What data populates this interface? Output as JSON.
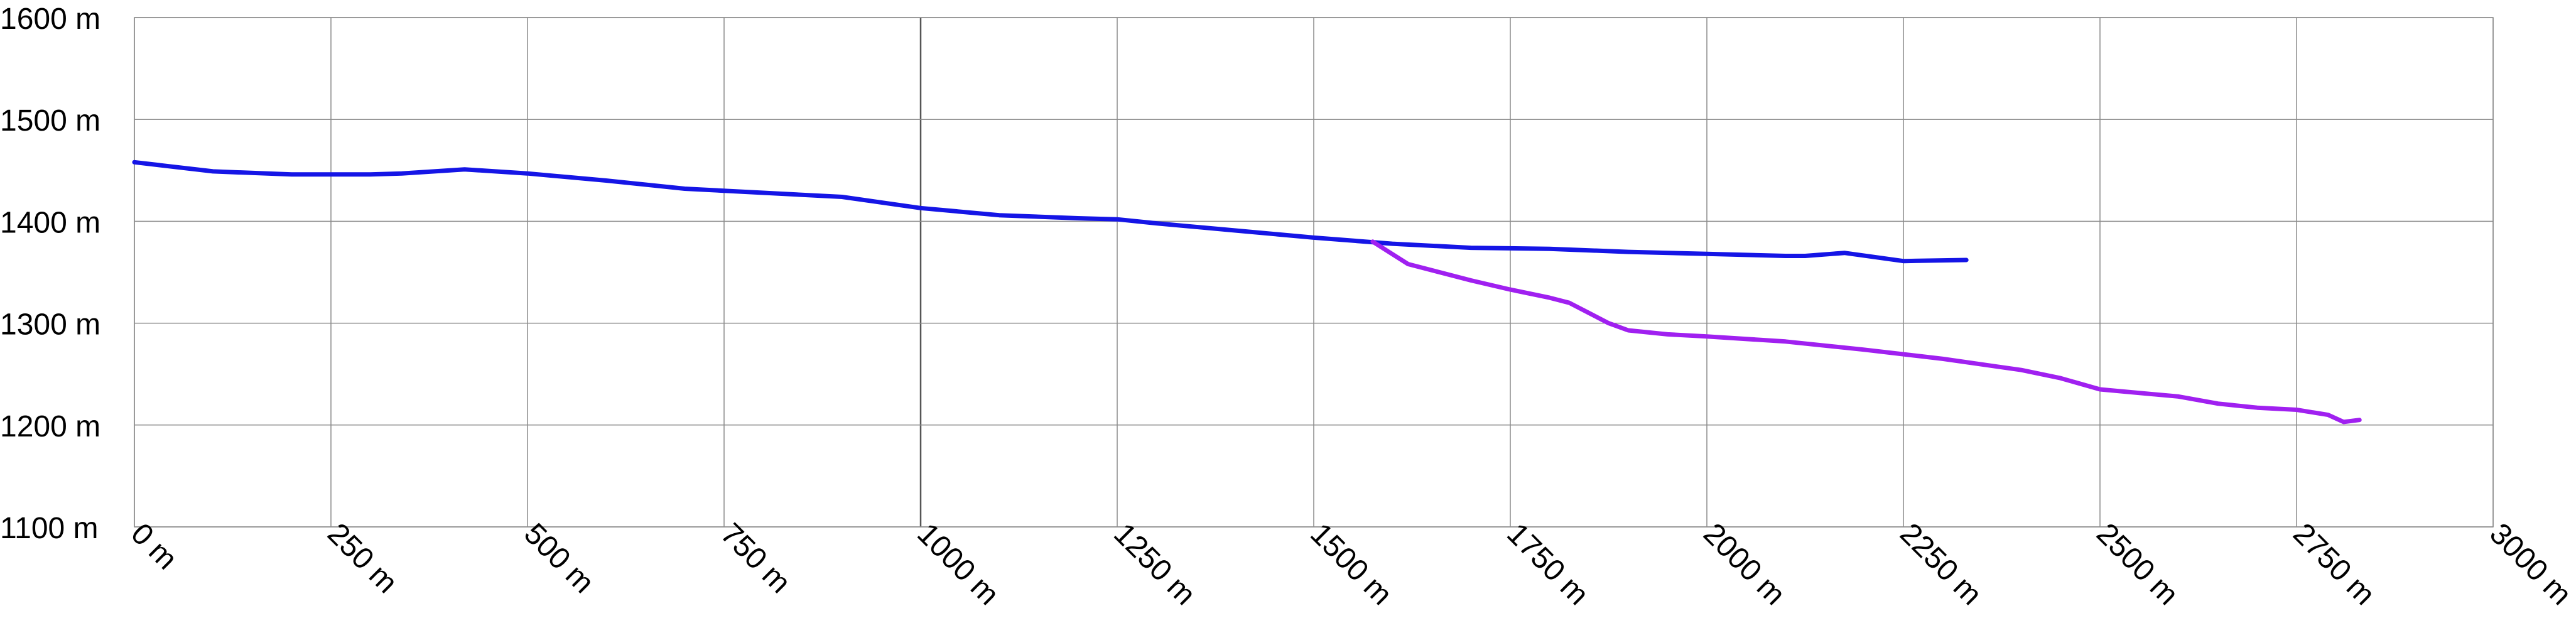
{
  "chart_data": {
    "type": "line",
    "title": "",
    "xlabel": "",
    "ylabel": "",
    "x_unit": "m",
    "y_unit": "m",
    "xlim": [
      0,
      3000
    ],
    "ylim": [
      1100,
      1600
    ],
    "x_ticks": [
      "0 m",
      "250 m",
      "500 m",
      "750 m",
      "1000 m",
      "1250 m",
      "1500 m",
      "1750 m",
      "2000 m",
      "2250 m",
      "2500 m",
      "2750 m",
      "3000 m"
    ],
    "y_ticks": [
      "1600 m",
      "1500 m",
      "1400 m",
      "1300 m",
      "1200 m",
      "1100 m"
    ],
    "x_tick_values": [
      0,
      250,
      500,
      750,
      1000,
      1250,
      1500,
      1750,
      2000,
      2250,
      2500,
      2750,
      3000
    ],
    "y_tick_values": [
      1600,
      1500,
      1400,
      1300,
      1200,
      1100
    ],
    "grid": true,
    "legend": "none",
    "series": [
      {
        "color": "#1515e6",
        "x": [
          0,
          100,
          200,
          300,
          340,
          420,
          500,
          600,
          700,
          800,
          900,
          1000,
          1100,
          1200,
          1250,
          1300,
          1400,
          1500,
          1600,
          1700,
          1800,
          1900,
          2000,
          2100,
          2125,
          2175,
          2250,
          2330
        ],
        "y": [
          1458,
          1449,
          1446,
          1446,
          1447,
          1451,
          1447,
          1440,
          1432,
          1428,
          1424,
          1413,
          1406,
          1403,
          1402,
          1398,
          1391,
          1384,
          1378,
          1374,
          1373,
          1370,
          1368,
          1366,
          1366,
          1369,
          1361,
          1362
        ]
      },
      {
        "color": "#a020f0",
        "x": [
          1575,
          1620,
          1700,
          1750,
          1800,
          1825,
          1850,
          1875,
          1900,
          1950,
          2000,
          2100,
          2200,
          2300,
          2400,
          2450,
          2500,
          2600,
          2650,
          2700,
          2750,
          2790,
          2810,
          2830
        ],
        "y": [
          1380,
          1358,
          1342,
          1333,
          1325,
          1320,
          1310,
          1300,
          1293,
          1289,
          1287,
          1282,
          1274,
          1265,
          1254,
          1246,
          1235,
          1228,
          1221,
          1217,
          1215,
          1210,
          1203,
          1205
        ]
      }
    ]
  }
}
